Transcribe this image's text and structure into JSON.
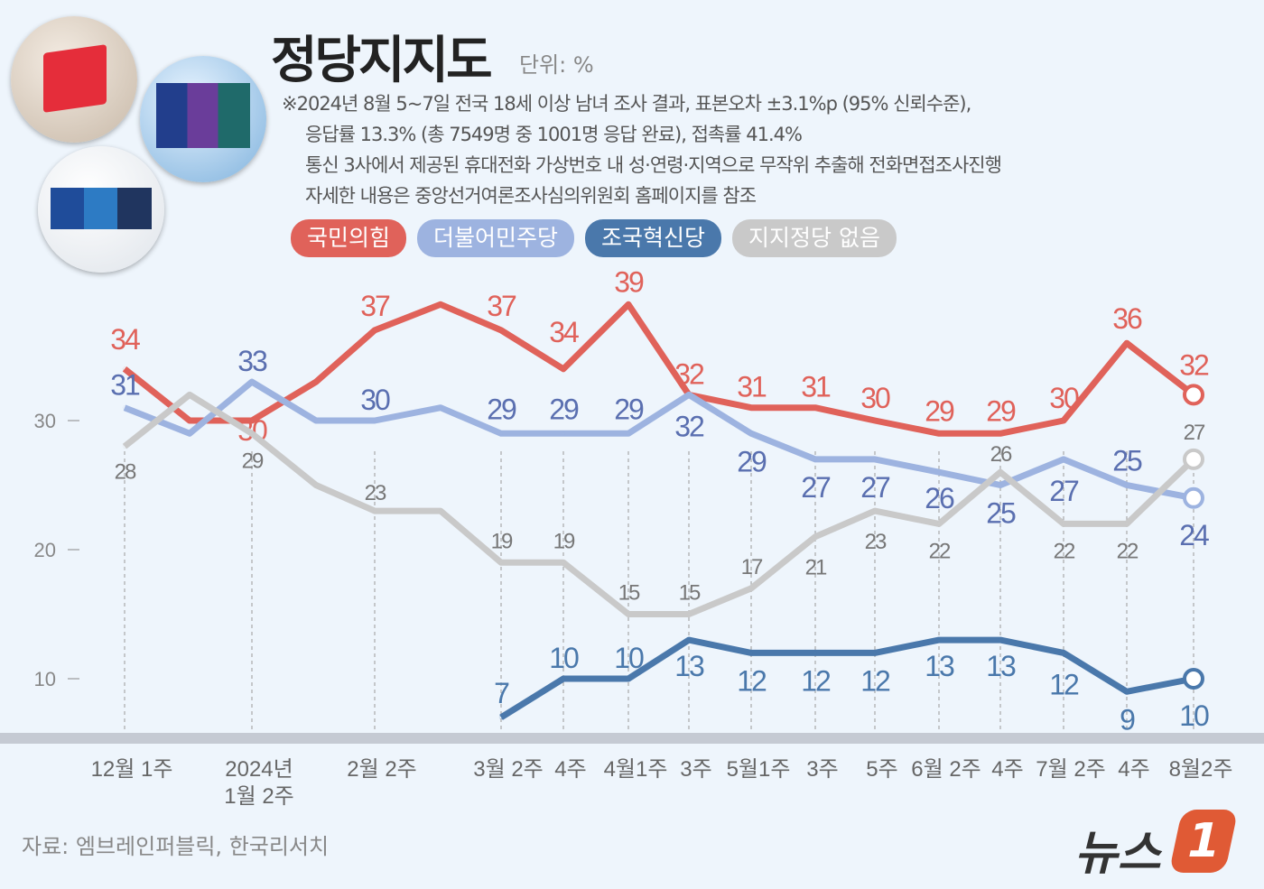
{
  "title": "정당지지도",
  "unit": "단위: %",
  "notes": [
    "※2024년 8월 5~7일 전국 18세 이상 남녀 조사 결과, 표본오차 ±3.1%p (95% 신뢰수준),",
    "응답률 13.3% (총 7549명 중 1001명 응답 완료), 접촉률 41.4%",
    "통신 3사에서 제공된 휴대전화 가상번호 내 성·연령·지역으로 무작위 추출해 전화면접조사진행",
    "자세한 내용은 중앙선거여론조사심의위원회 홈페이지를 참조"
  ],
  "source": "자료: 엠브레인퍼블릭, 한국리서치",
  "logo_text": "뉴스1",
  "chart_data": {
    "type": "line",
    "title": "정당지지도",
    "ylabel": "단위: %",
    "ylim": [
      5,
      40
    ],
    "yticks": [
      10,
      20,
      30
    ],
    "grid": false,
    "legend_placement": "top",
    "categories": [
      "12월 1주",
      "",
      "2024년\n1월 2주",
      "",
      "2월 2주",
      "",
      "3월 2주",
      "4주",
      "4월1주",
      "3주",
      "5월1주",
      "3주",
      "5주",
      "6월 2주",
      "4주",
      "7월 2주",
      "4주",
      "8월2주"
    ],
    "series": [
      {
        "name": "국민의힘",
        "color": "#e0625a",
        "values": [
          34,
          30,
          30,
          33,
          37,
          39,
          37,
          34,
          39,
          32,
          31,
          31,
          30,
          29,
          29,
          30,
          36,
          32
        ],
        "labels": [
          34,
          null,
          30,
          null,
          37,
          null,
          37,
          34,
          39,
          32,
          31,
          31,
          30,
          29,
          29,
          30,
          36,
          32
        ]
      },
      {
        "name": "더불어민주당",
        "color": "#9db3e0",
        "labelColor": "#5a6fb0",
        "values": [
          31,
          29,
          33,
          30,
          30,
          31,
          29,
          29,
          29,
          32,
          29,
          27,
          27,
          26,
          25,
          27,
          25,
          24
        ],
        "labels": [
          31,
          null,
          33,
          null,
          30,
          null,
          29,
          29,
          29,
          32,
          29,
          27,
          27,
          26,
          25,
          27,
          25,
          24
        ]
      },
      {
        "name": "조국혁신당",
        "color": "#4a78ab",
        "values": [
          null,
          null,
          null,
          null,
          null,
          null,
          7,
          10,
          10,
          13,
          12,
          12,
          12,
          13,
          13,
          12,
          9,
          10
        ],
        "labels": [
          null,
          null,
          null,
          null,
          null,
          null,
          7,
          10,
          10,
          13,
          12,
          12,
          12,
          13,
          13,
          12,
          9,
          10
        ]
      },
      {
        "name": "지지정당 없음",
        "color": "#c9c9c9",
        "labelColor": "#777",
        "values": [
          28,
          32,
          29,
          25,
          23,
          23,
          19,
          19,
          15,
          15,
          17,
          21,
          23,
          22,
          26,
          22,
          22,
          27
        ],
        "labels": [
          28,
          null,
          29,
          null,
          23,
          null,
          19,
          19,
          15,
          15,
          17,
          21,
          23,
          22,
          26,
          22,
          22,
          27
        ]
      }
    ]
  }
}
